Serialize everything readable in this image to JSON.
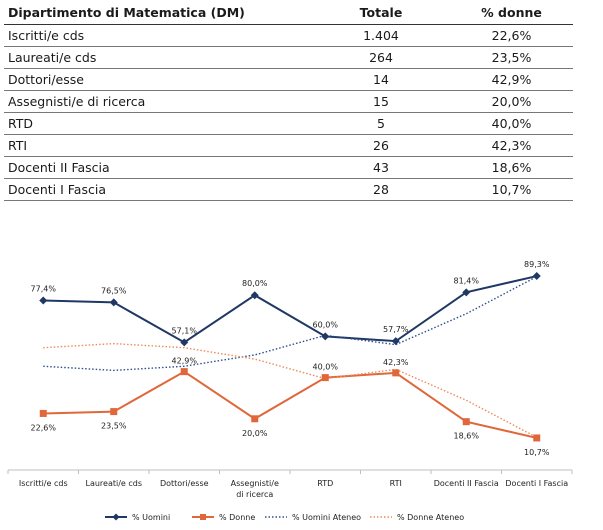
{
  "table": {
    "headers": [
      "Dipartimento di Matematica (DM)",
      "Totale",
      "% donne"
    ],
    "rows": [
      [
        "Iscritti/e cds",
        "1.404",
        "22,6%"
      ],
      [
        "Laureati/e cds",
        "264",
        "23,5%"
      ],
      [
        "Dottori/esse",
        "14",
        "42,9%"
      ],
      [
        "Assegnisti/e di ricerca",
        "15",
        "20,0%"
      ],
      [
        "RTD",
        "5",
        "40,0%"
      ],
      [
        "RTI",
        "26",
        "42,3%"
      ],
      [
        "Docenti II Fascia",
        "43",
        "18,6%"
      ],
      [
        "Docenti I Fascia",
        "28",
        "10,7%"
      ]
    ]
  },
  "colors": {
    "uomini": "#1f3864",
    "donne": "#e0673a",
    "uomini_ateneo": "#2e4f8c",
    "donne_ateneo": "#ed8a5a"
  },
  "chart_data": {
    "type": "line",
    "categories": [
      "Iscritti/e cds",
      "Laureati/e cds",
      "Dottori/esse",
      "Assegnisti/e di ricerca",
      "RTD",
      "RTI",
      "Docenti II Fascia",
      "Docenti I Fascia"
    ],
    "ylim": [
      0,
      100
    ],
    "grid": false,
    "legend_position": "bottom",
    "series": [
      {
        "name": "% Uomini",
        "values": [
          77.4,
          76.5,
          57.1,
          80.0,
          60.0,
          57.7,
          81.4,
          89.3
        ],
        "labels": [
          "77,4%",
          "76,5%",
          "57,1%",
          "80,0%",
          "60,0%",
          "57,7%",
          "81,4%",
          "89,3%"
        ],
        "style": "solid-diamond"
      },
      {
        "name": "% Donne",
        "values": [
          22.6,
          23.5,
          42.9,
          20.0,
          40.0,
          42.3,
          18.6,
          10.7
        ],
        "labels": [
          "22,6%",
          "23,5%",
          "42,9%",
          "20,0%",
          "40,0%",
          "42,3%",
          "18,6%",
          "10,7%"
        ],
        "style": "solid-square"
      },
      {
        "name": "% Uomini Ateneo",
        "values": [
          45.5,
          43.5,
          45.5,
          51.0,
          60.5,
          56.0,
          71.0,
          89.0
        ],
        "style": "dotted"
      },
      {
        "name": "% Donne Ateneo",
        "values": [
          54.5,
          56.5,
          54.5,
          49.0,
          39.5,
          44.0,
          29.0,
          11.0
        ],
        "style": "dotted"
      }
    ]
  }
}
